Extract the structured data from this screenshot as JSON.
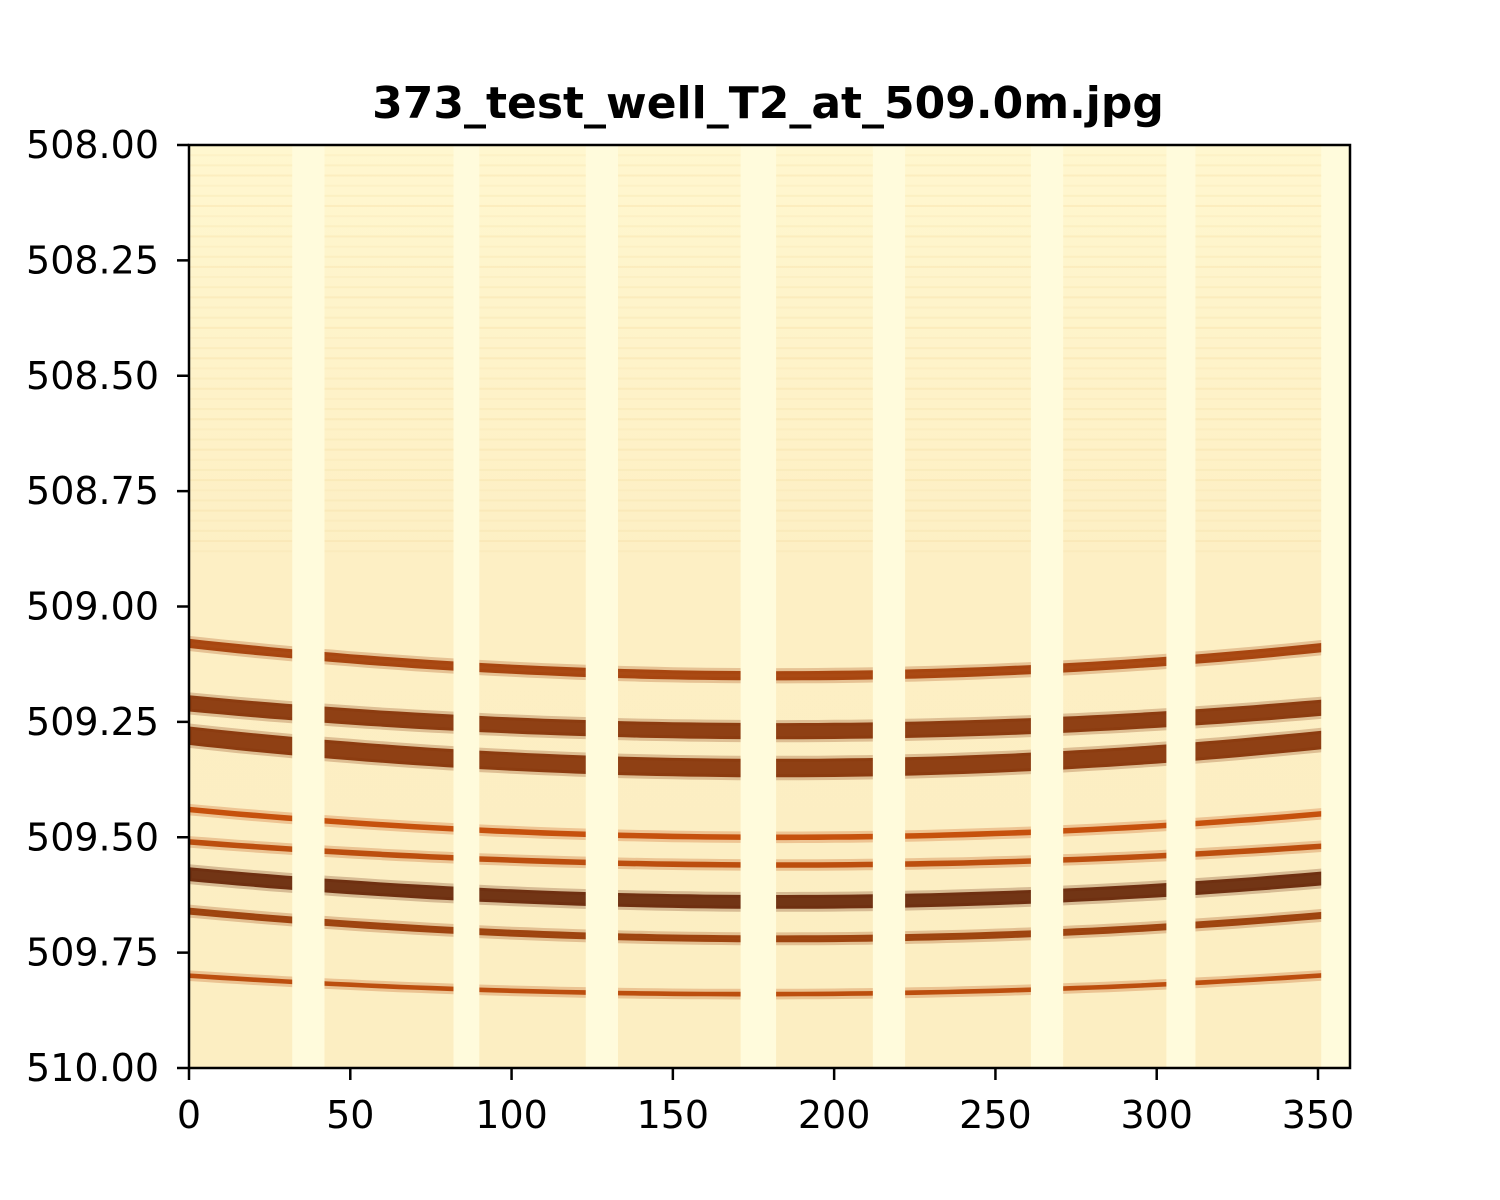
{
  "chart_data": {
    "type": "heatmap",
    "title": "373_test_well_T2_at_509.0m.jpg",
    "xlabel": "",
    "ylabel": "",
    "xlim": [
      0,
      360
    ],
    "ylim": [
      510.0,
      508.0
    ],
    "y_inverted": true,
    "grid": false,
    "colormap": "YlOrBr",
    "x_ticks": [
      0,
      50,
      100,
      150,
      200,
      250,
      300,
      350
    ],
    "x_tick_labels": [
      "0",
      "50",
      "100",
      "150",
      "200",
      "250",
      "300",
      "350"
    ],
    "y_ticks": [
      508.0,
      508.25,
      508.5,
      508.75,
      509.0,
      509.25,
      509.5,
      509.75,
      510.0
    ],
    "y_tick_labels": [
      "508.00",
      "508.25",
      "508.50",
      "508.75",
      "509.00",
      "509.25",
      "509.50",
      "509.75",
      "510.00"
    ],
    "pad_gaps_x": [
      [
        32,
        42
      ],
      [
        82,
        90
      ],
      [
        123,
        133
      ],
      [
        171,
        182
      ],
      [
        212,
        222
      ],
      [
        261,
        271
      ],
      [
        303,
        312
      ],
      [
        351,
        360
      ]
    ],
    "dark_bands": [
      {
        "depth_left": 509.08,
        "depth_mid": 509.15,
        "depth_right": 509.09,
        "intensity": 0.7,
        "thickness": 0.02
      },
      {
        "depth_left": 509.21,
        "depth_mid": 509.27,
        "depth_right": 509.22,
        "intensity": 0.85,
        "thickness": 0.035
      },
      {
        "depth_left": 509.28,
        "depth_mid": 509.35,
        "depth_right": 509.29,
        "intensity": 0.85,
        "thickness": 0.04
      },
      {
        "depth_left": 509.44,
        "depth_mid": 509.5,
        "depth_right": 509.45,
        "intensity": 0.55,
        "thickness": 0.012
      },
      {
        "depth_left": 509.51,
        "depth_mid": 509.56,
        "depth_right": 509.52,
        "intensity": 0.6,
        "thickness": 0.012
      },
      {
        "depth_left": 509.58,
        "depth_mid": 509.64,
        "depth_right": 509.59,
        "intensity": 1.0,
        "thickness": 0.03
      },
      {
        "depth_left": 509.66,
        "depth_mid": 509.72,
        "depth_right": 509.67,
        "intensity": 0.75,
        "thickness": 0.015
      },
      {
        "depth_left": 509.8,
        "depth_mid": 509.84,
        "depth_right": 509.8,
        "intensity": 0.6,
        "thickness": 0.01
      }
    ]
  }
}
